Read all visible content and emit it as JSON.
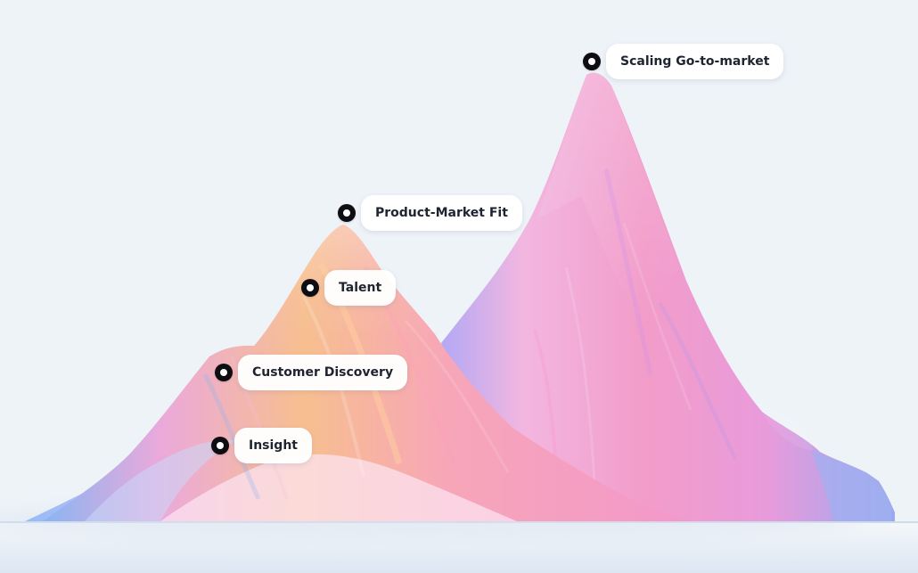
{
  "diagram": {
    "labels": {
      "scaling": "Scaling Go-to-market",
      "product_market_fit": "Product-Market Fit",
      "talent": "Talent",
      "customer_discovery": "Customer Discovery",
      "insight": "Insight"
    },
    "colors": {
      "background": "#eef3f8",
      "marker": "#0d0d12",
      "pill": "#ffffff",
      "text": "#1e2430",
      "mountain_pink": "#f59ac8",
      "mountain_orange": "#f8bf90",
      "mountain_blue": "#8cb3f2",
      "mountain_violet": "#b49cf0"
    }
  }
}
